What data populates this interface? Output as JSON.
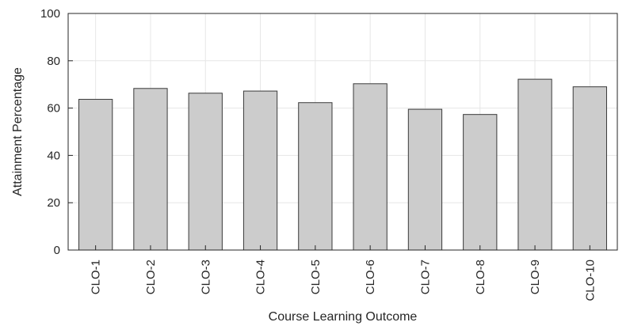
{
  "chart_data": {
    "type": "bar",
    "title": "",
    "xlabel": "Course Learning Outcome",
    "ylabel": "Attainment Percentage",
    "categories": [
      "CLO-1",
      "CLO-2",
      "CLO-3",
      "CLO-4",
      "CLO-5",
      "CLO-6",
      "CLO-7",
      "CLO-8",
      "CLO-9",
      "CLO-10"
    ],
    "values": [
      63.7,
      68.3,
      66.3,
      67.2,
      62.3,
      70.3,
      59.5,
      57.3,
      72.2,
      69.0
    ],
    "ylim": [
      0,
      100
    ],
    "yticks": [
      "0",
      "20",
      "40",
      "60",
      "80",
      "100"
    ],
    "grid": true,
    "legend": "none",
    "bar_color": "#cccccc",
    "bar_edge_color": "#3a3a3a",
    "grid_color": "#e6e6e6",
    "axis_color": "#262626"
  }
}
